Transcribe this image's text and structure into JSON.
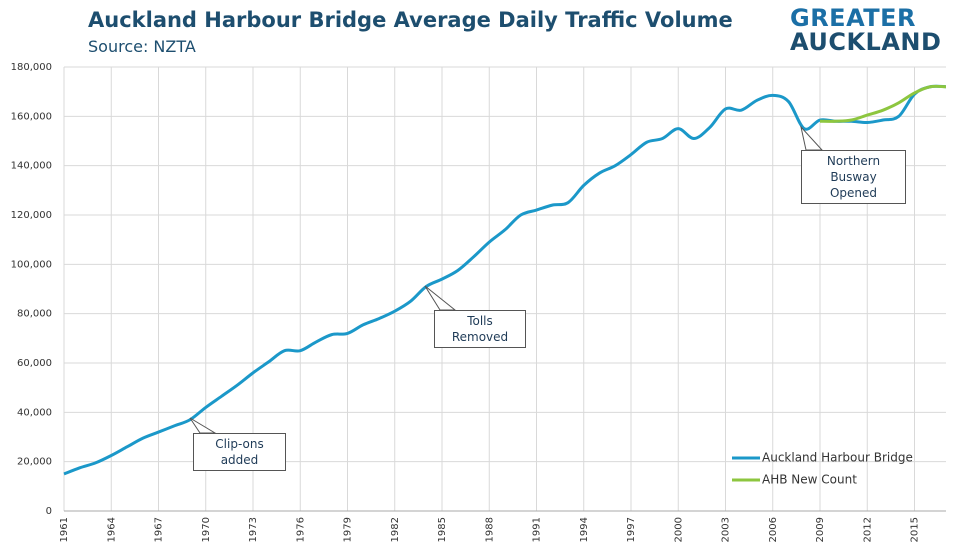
{
  "chart_data": {
    "type": "line",
    "title": "Auckland Harbour Bridge Average Daily Traffic Volume",
    "subtitle": "Source: NZTA",
    "logo": [
      "GREATER",
      "AUCKLAND"
    ],
    "x": [
      1961,
      1962,
      1963,
      1964,
      1965,
      1966,
      1967,
      1968,
      1969,
      1970,
      1971,
      1972,
      1973,
      1974,
      1975,
      1976,
      1977,
      1978,
      1979,
      1980,
      1981,
      1982,
      1983,
      1984,
      1985,
      1986,
      1987,
      1988,
      1989,
      1990,
      1991,
      1992,
      1993,
      1994,
      1995,
      1996,
      1997,
      1998,
      1999,
      2000,
      2001,
      2002,
      2003,
      2004,
      2005,
      2006,
      2007,
      2008,
      2009,
      2010,
      2011,
      2012,
      2013,
      2014,
      2015,
      2016,
      2017
    ],
    "series": [
      {
        "name": "Auckland Harbour Bridge",
        "color": "#1b98c9",
        "values": [
          15000,
          17500,
          19500,
          22500,
          26000,
          29500,
          32000,
          34500,
          37000,
          42000,
          46500,
          51000,
          56000,
          60500,
          65000,
          65000,
          68500,
          71500,
          72000,
          75500,
          78000,
          81000,
          85000,
          91000,
          94000,
          97500,
          103000,
          109000,
          114000,
          120000,
          122000,
          124000,
          125000,
          132000,
          137000,
          140000,
          144500,
          149500,
          151000,
          155000,
          151000,
          155500,
          163000,
          162500,
          166500,
          168500,
          166000,
          155000,
          158500,
          158000,
          158000,
          157500,
          158500,
          160000,
          169000,
          172000,
          172000
        ]
      },
      {
        "name": "AHB New Count",
        "color": "#8dc63f",
        "values": [
          null,
          null,
          null,
          null,
          null,
          null,
          null,
          null,
          null,
          null,
          null,
          null,
          null,
          null,
          null,
          null,
          null,
          null,
          null,
          null,
          null,
          null,
          null,
          null,
          null,
          null,
          null,
          null,
          null,
          null,
          null,
          null,
          null,
          null,
          null,
          null,
          null,
          null,
          null,
          null,
          null,
          null,
          null,
          null,
          null,
          null,
          null,
          null,
          158000,
          158000,
          158500,
          160500,
          162500,
          165500,
          169500,
          172000,
          172000
        ]
      }
    ],
    "xlim": [
      1961,
      2017
    ],
    "xticks": [
      1961,
      1964,
      1967,
      1970,
      1973,
      1976,
      1979,
      1982,
      1985,
      1988,
      1991,
      1994,
      1997,
      2000,
      2003,
      2006,
      2009,
      2012,
      2015
    ],
    "ylim": [
      0,
      180000
    ],
    "yticks": [
      0,
      {
        "value": 20000,
        "label": "20,000"
      },
      {
        "value": 40000,
        "label": "40,000"
      },
      {
        "value": 60000,
        "label": "60,000"
      },
      {
        "value": 80000,
        "label": "80,000"
      },
      {
        "value": 100000,
        "label": "100,000"
      },
      {
        "value": 120000,
        "label": "120,000"
      },
      {
        "value": 140000,
        "label": "140,000"
      },
      {
        "value": 160000,
        "label": "160,000"
      },
      {
        "value": 180000,
        "label": "180,000"
      }
    ],
    "grid": true,
    "legend": "bottom-right",
    "annotations": [
      "Clip-ons added",
      "Tolls Removed",
      "Northern Busway Opened"
    ]
  }
}
